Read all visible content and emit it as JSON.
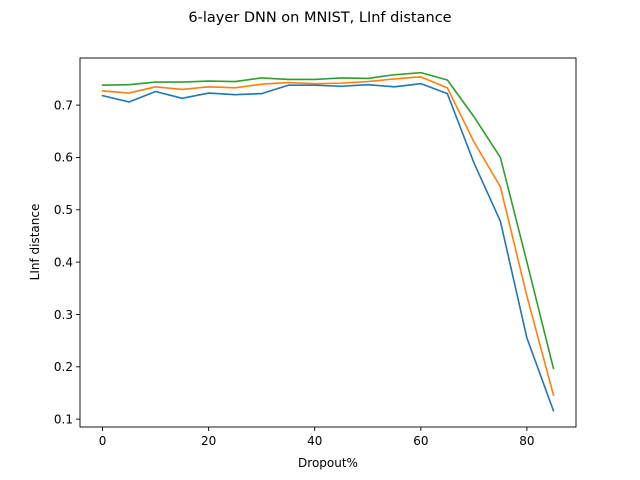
{
  "chart_data": {
    "type": "line",
    "title": "6-layer DNN on MNIST, LInf distance",
    "xlabel": "Dropout%",
    "ylabel": "LInf distance",
    "xlim": [
      -4.25,
      89.25
    ],
    "ylim": [
      0.085,
      0.79
    ],
    "xticks": [
      0,
      20,
      40,
      60,
      80
    ],
    "yticks": [
      0.1,
      0.2,
      0.3,
      0.4,
      0.5,
      0.6,
      0.7
    ],
    "grid": false,
    "x": [
      0,
      5,
      10,
      15,
      20,
      25,
      30,
      35,
      40,
      45,
      50,
      55,
      60,
      65,
      70,
      75,
      80,
      85
    ],
    "series": [
      {
        "color": "#1f77b4",
        "values": [
          0.718,
          0.706,
          0.726,
          0.713,
          0.723,
          0.72,
          0.722,
          0.738,
          0.738,
          0.736,
          0.739,
          0.735,
          0.741,
          0.722,
          0.59,
          0.478,
          0.255,
          0.116
        ]
      },
      {
        "color": "#ff7f0e",
        "values": [
          0.727,
          0.723,
          0.735,
          0.73,
          0.735,
          0.733,
          0.74,
          0.743,
          0.741,
          0.742,
          0.745,
          0.75,
          0.754,
          0.733,
          0.63,
          0.544,
          0.335,
          0.146
        ]
      },
      {
        "color": "#2ca02c",
        "values": [
          0.738,
          0.739,
          0.744,
          0.744,
          0.746,
          0.745,
          0.752,
          0.749,
          0.749,
          0.752,
          0.751,
          0.758,
          0.762,
          0.748,
          0.678,
          0.6,
          0.4,
          0.197
        ]
      }
    ]
  }
}
